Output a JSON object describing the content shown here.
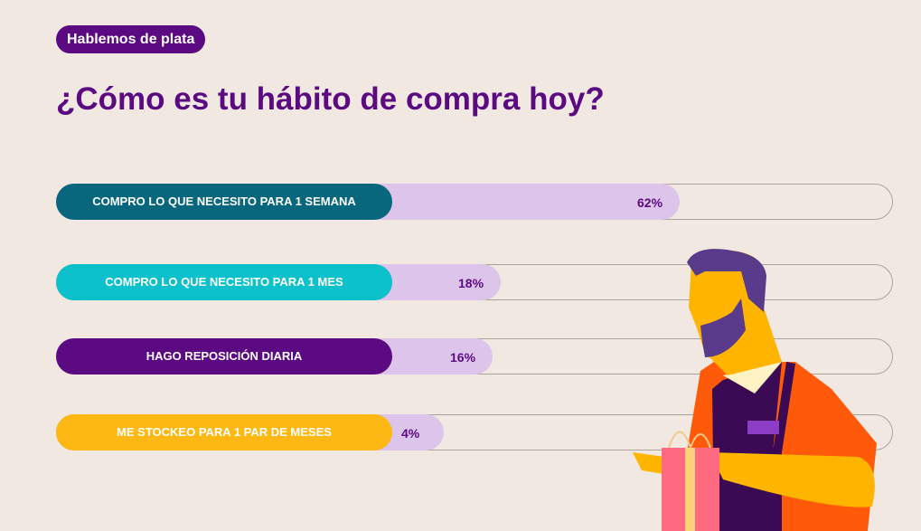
{
  "badge": "Hablemos de plata",
  "title": "¿Cómo es tu hábito de compra hoy?",
  "chart_data": {
    "type": "bar",
    "title": "¿Cómo es tu hábito de compra hoy?",
    "categories": [
      "COMPRO LO QUE NECESITO PARA 1 SEMANA",
      "COMPRO LO QUE NECESITO PARA 1 MES",
      "HAGO REPOSICIÓN DIARIA",
      "ME STOCKEO PARA 1 PAR DE MESES"
    ],
    "values": [
      62,
      18,
      16,
      4
    ],
    "labels": [
      "62%",
      "18%",
      "16%",
      "4%"
    ],
    "colors": [
      "#08677d",
      "#0cc0cc",
      "#5c0a82",
      "#fdb813"
    ],
    "ylim": [
      0,
      100
    ]
  }
}
